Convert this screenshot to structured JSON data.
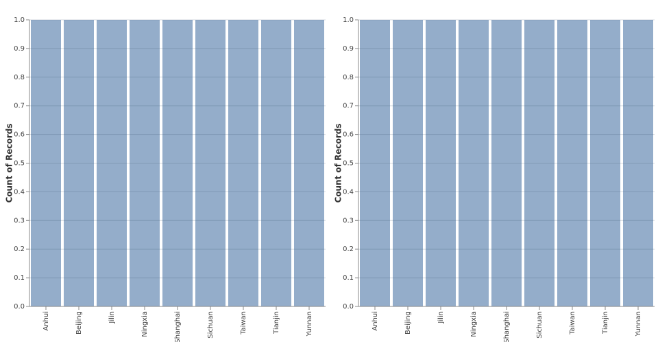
{
  "chart_data": [
    {
      "type": "bar",
      "y_label": "Count of Records",
      "categories": [
        "Anhui",
        "Beijing",
        "Jilin",
        "Ningxia",
        "Shanghai",
        "Sichuan",
        "Taiwan",
        "Tianjin",
        "Yunnan"
      ],
      "values": [
        1,
        1,
        1,
        1,
        1,
        1,
        1,
        1,
        1
      ],
      "color": "#94adca",
      "ylim": [
        0,
        1
      ],
      "yticks": [
        {
          "value": 0,
          "label": "0.0"
        },
        0.1,
        0.2,
        0.3,
        0.4,
        0.5,
        0.6,
        0.7,
        0.8,
        0.9,
        {
          "value": 1,
          "label": "1.0"
        }
      ],
      "grid": true
    },
    {
      "type": "bar",
      "y_label": "Count of Records",
      "categories": [
        "Anhui",
        "Beijing",
        "Jilin",
        "Ningxia",
        "Shanghai",
        "Sichuan",
        "Taiwan",
        "Tianjin",
        "Yunnan"
      ],
      "values": [
        1,
        1,
        1,
        1,
        1,
        1,
        1,
        1,
        1
      ],
      "color": "#94adca",
      "ylim": [
        0,
        1
      ],
      "yticks": [
        {
          "value": 0,
          "label": "0.0"
        },
        0.1,
        0.2,
        0.3,
        0.4,
        0.5,
        0.6,
        0.7,
        0.8,
        0.9,
        {
          "value": 1,
          "label": "1.0"
        }
      ],
      "grid": true
    }
  ]
}
